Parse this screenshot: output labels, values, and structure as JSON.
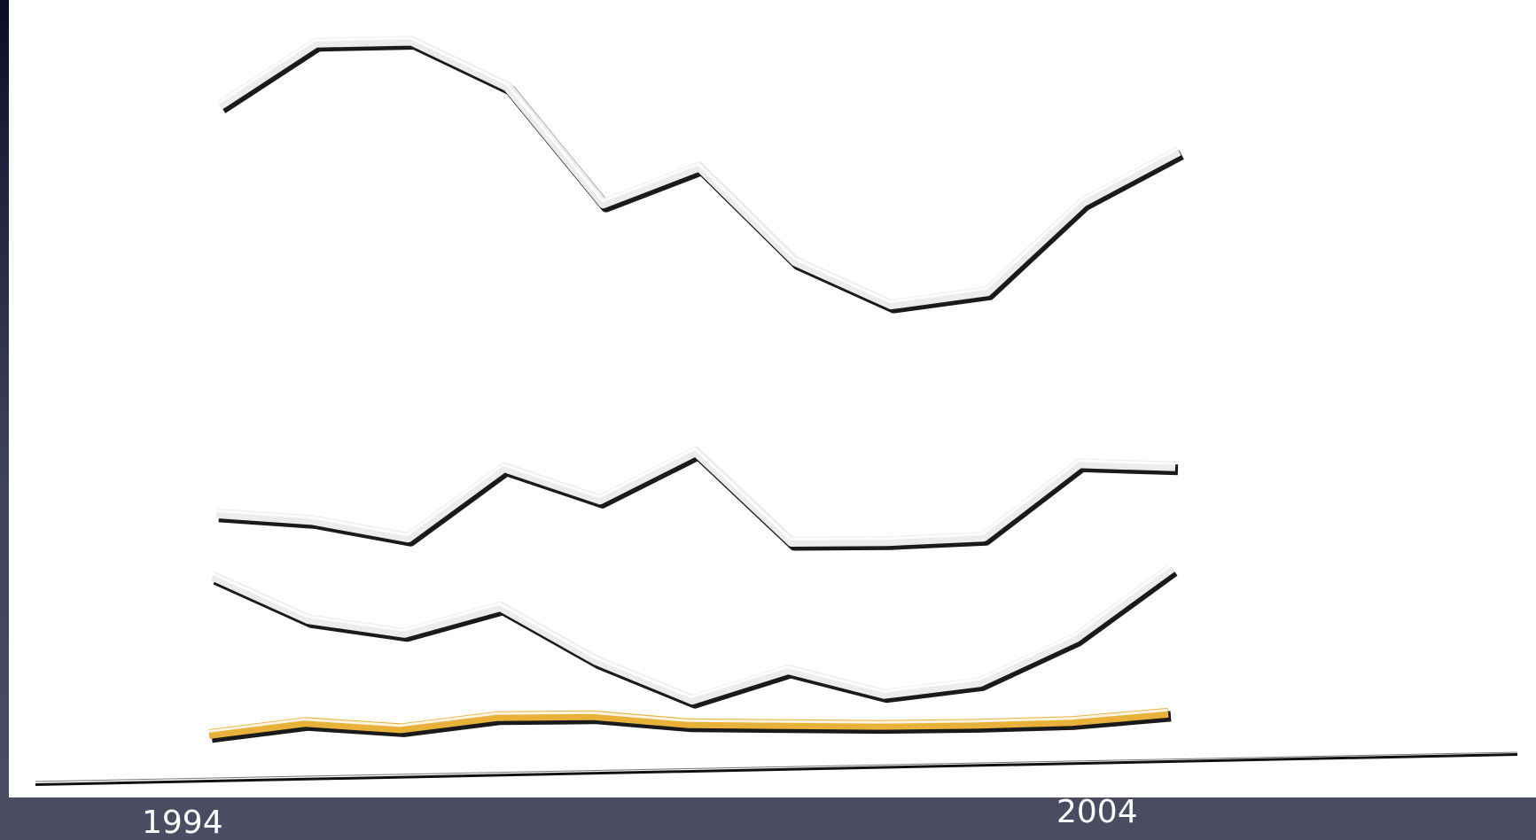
{
  "chart_data": {
    "type": "line",
    "title": "",
    "xlabel": "",
    "ylabel": "",
    "tick_labels": {
      "start": "1994",
      "end": "2004"
    },
    "x": [
      1994,
      1995,
      1996,
      1997,
      1998,
      1999,
      2000,
      2001,
      2002,
      2003,
      2004
    ],
    "series": [
      {
        "color": "#ececec",
        "values": [
          1750,
          1920,
          1925,
          1800,
          1480,
          1580,
          1320,
          1200,
          1235,
          1480,
          1620
        ]
      },
      {
        "color": "#ececec",
        "values": [
          640,
          620,
          570,
          760,
          670,
          800,
          550,
          550,
          560,
          760,
          750
        ]
      },
      {
        "color": "#ececec",
        "values": [
          470,
          350,
          310,
          380,
          230,
          120,
          200,
          130,
          160,
          280,
          470
        ]
      },
      {
        "color": "#e8b23a",
        "values": [
          40,
          70,
          50,
          80,
          80,
          55,
          50,
          45,
          45,
          50,
          70
        ]
      }
    ],
    "ylim": [
      0,
      2000
    ],
    "grid": false,
    "legend": "none",
    "style": "3d-ribbon"
  }
}
